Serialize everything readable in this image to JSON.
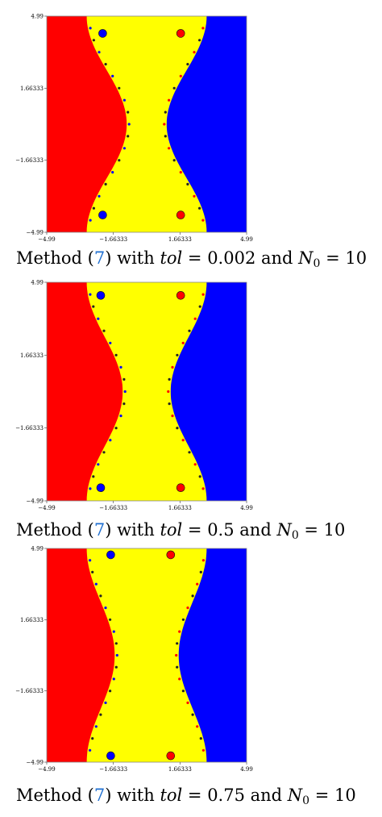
{
  "chart_data": [
    {
      "type": "heatmap",
      "xlim": [
        -4.99,
        4.99
      ],
      "ylim": [
        -4.99,
        4.99
      ],
      "x_ticks": [
        "-4.99",
        "-1.66333",
        "1.66333",
        "4.99"
      ],
      "y_ticks": [
        "4.99",
        "1.66333",
        "-1.66333",
        "-4.99"
      ],
      "regions": [
        {
          "color": "#ff0000"
        },
        {
          "color": "#ffff00"
        },
        {
          "color": "#0000ff"
        }
      ],
      "caption": {
        "prefix": "Method (",
        "ref": "7",
        "middle": ") with ",
        "tol_label": "tol",
        "tol_value": " = 0.002 and ",
        "n_label": "N",
        "n_sub": "0",
        "n_value": " = 10"
      }
    },
    {
      "type": "heatmap",
      "xlim": [
        -4.99,
        4.99
      ],
      "ylim": [
        -4.99,
        4.99
      ],
      "x_ticks": [
        "-4.99",
        "-1.66333",
        "1.66333",
        "4.99"
      ],
      "y_ticks": [
        "4.99",
        "1.66333",
        "-1.66333",
        "-4.99"
      ],
      "regions": [
        {
          "color": "#ff0000"
        },
        {
          "color": "#ffff00"
        },
        {
          "color": "#0000ff"
        }
      ],
      "caption": {
        "prefix": "Method (",
        "ref": "7",
        "middle": ") with ",
        "tol_label": "tol",
        "tol_value": " = 0.5 and ",
        "n_label": "N",
        "n_sub": "0",
        "n_value": " = 10"
      }
    },
    {
      "type": "heatmap",
      "xlim": [
        -4.99,
        4.99
      ],
      "ylim": [
        -4.99,
        4.99
      ],
      "x_ticks": [
        "-4.99",
        "-1.66333",
        "1.66333",
        "4.99"
      ],
      "y_ticks": [
        "4.99",
        "1.66333",
        "-1.66333",
        "-4.99"
      ],
      "regions": [
        {
          "color": "#ff0000"
        },
        {
          "color": "#ffff00"
        },
        {
          "color": "#0000ff"
        }
      ],
      "caption": {
        "prefix": "Method (",
        "ref": "7",
        "middle": ") with ",
        "tol_label": "tol",
        "tol_value": " = 0.75 and ",
        "n_label": "N",
        "n_sub": "0",
        "n_value": " = 10"
      }
    }
  ]
}
